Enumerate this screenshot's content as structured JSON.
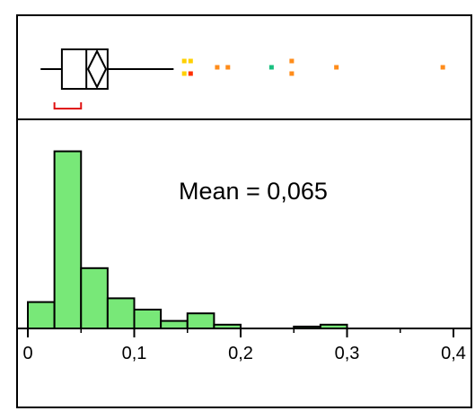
{
  "chart_data": [
    {
      "type": "box",
      "panel": "top",
      "orientation": "horizontal",
      "whisker_low": 0.012,
      "q1": 0.032,
      "median": 0.055,
      "q3": 0.075,
      "whisker_high": 0.137,
      "mean": 0.065,
      "shortest_half": [
        0.025,
        0.05
      ],
      "outliers": [
        {
          "x": 0.147,
          "level": "upper",
          "color": "#ffd000"
        },
        {
          "x": 0.147,
          "level": "lower",
          "color": "#ffd000"
        },
        {
          "x": 0.153,
          "level": "upper",
          "color": "#ffd000"
        },
        {
          "x": 0.153,
          "level": "lower",
          "color": "#ff3000"
        },
        {
          "x": 0.178,
          "level": "middle",
          "color": "#ff8c1a"
        },
        {
          "x": 0.188,
          "level": "middle",
          "color": "#ff8c1a"
        },
        {
          "x": 0.229,
          "level": "middle",
          "color": "#19c080"
        },
        {
          "x": 0.248,
          "level": "upper",
          "color": "#ff8c1a"
        },
        {
          "x": 0.248,
          "level": "lower",
          "color": "#ff8c1a"
        },
        {
          "x": 0.29,
          "level": "middle",
          "color": "#ff8c1a"
        },
        {
          "x": 0.39,
          "level": "middle",
          "color": "#ff8c1a"
        }
      ]
    },
    {
      "type": "bar",
      "panel": "bottom",
      "style": "histogram",
      "bin_width": 0.025,
      "x_start": 0,
      "counts": [
        7,
        47,
        16,
        8,
        5,
        2,
        4,
        1,
        0,
        0,
        0.5,
        1,
        0,
        0,
        0,
        0
      ],
      "color": "#78e878",
      "xlim": [
        -0.005,
        0.41
      ],
      "ticks": [
        0,
        0.1,
        0.2,
        0.3,
        0.4
      ],
      "tick_labels": [
        "0",
        "0,1",
        "0,2",
        "0,3",
        "0,4"
      ],
      "annotation": "Mean = 0,065"
    }
  ]
}
